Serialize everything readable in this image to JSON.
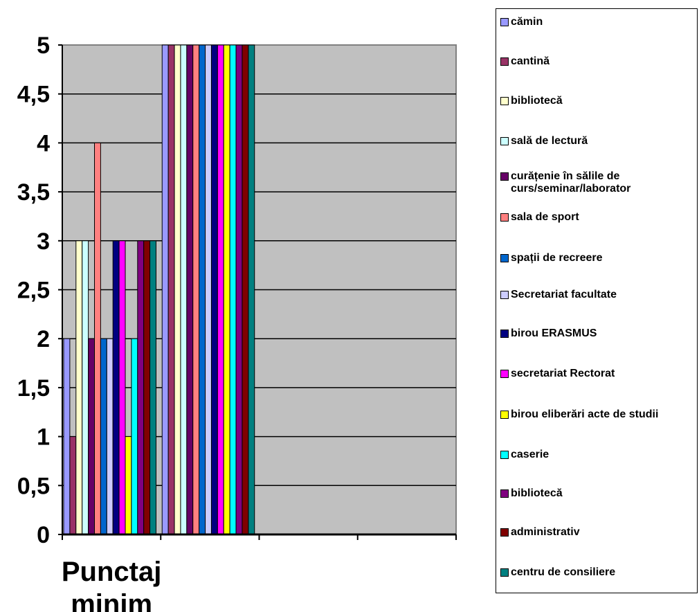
{
  "chart_data": {
    "type": "bar",
    "categories": [
      "Punctaj\nminim",
      ""
    ],
    "category_lines": [
      [
        "Punctaj",
        "minim"
      ],
      []
    ],
    "ylim": [
      0,
      5
    ],
    "yticks": [
      "0",
      "0,5",
      "1",
      "1,5",
      "2",
      "2,5",
      "3",
      "3,5",
      "4",
      "4,5",
      "5"
    ],
    "grid": true,
    "plot_background": "#c0c0c0",
    "legend_position": "right",
    "series": [
      {
        "name": "cămin",
        "color": "#9999ff",
        "values": [
          2,
          5
        ]
      },
      {
        "name": "cantină",
        "color": "#993366",
        "values": [
          1,
          5
        ]
      },
      {
        "name": "bibliotecă",
        "color": "#ffffcc",
        "values": [
          3,
          5
        ]
      },
      {
        "name": "sală de lectură",
        "color": "#ccffff",
        "values": [
          3,
          5
        ]
      },
      {
        "name": "curățenie în sălile de curs/seminar/laborator",
        "color": "#660066",
        "values": [
          2,
          5
        ]
      },
      {
        "name": "sala de sport",
        "color": "#ff8080",
        "values": [
          4,
          5
        ]
      },
      {
        "name": "spații de recreere",
        "color": "#0066cc",
        "values": [
          2,
          5
        ]
      },
      {
        "name": "Secretariat facultate",
        "color": "#ccccff",
        "values": [
          2,
          5
        ]
      },
      {
        "name": "birou ERASMUS",
        "color": "#000080",
        "values": [
          3,
          5
        ]
      },
      {
        "name": "secretariat Rectorat",
        "color": "#ff00ff",
        "values": [
          3,
          5
        ]
      },
      {
        "name": "birou eliberări acte de studii",
        "color": "#ffff00",
        "values": [
          1,
          5
        ]
      },
      {
        "name": "caserie",
        "color": "#00ffff",
        "values": [
          2,
          5
        ]
      },
      {
        "name": "bibliotecă",
        "color": "#800080",
        "values": [
          3,
          5
        ]
      },
      {
        "name": "administrativ",
        "color": "#800000",
        "values": [
          3,
          5
        ]
      },
      {
        "name": "centru de consiliere",
        "color": "#008080",
        "values": [
          3,
          5
        ]
      }
    ]
  }
}
